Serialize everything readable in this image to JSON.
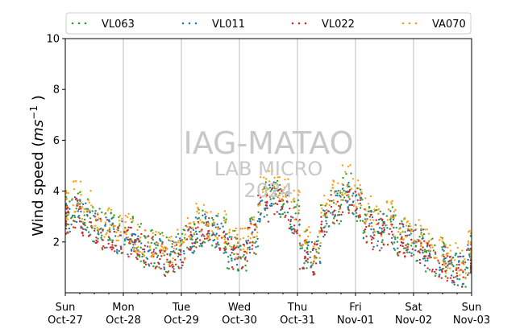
{
  "chart_data": {
    "type": "scatter",
    "ylabel": "Wind speed ($ms^{-1}$)",
    "ylim": [
      0,
      10
    ],
    "yticks": [
      2,
      4,
      6,
      8,
      10
    ],
    "xlim": [
      "2024-10-27",
      "2024-11-03"
    ],
    "grid": "vertical",
    "legend_placement": "top",
    "xtick_labels": [
      {
        "day": "Sun",
        "date": "Oct-27"
      },
      {
        "day": "Mon",
        "date": "Oct-28"
      },
      {
        "day": "Tue",
        "date": "Oct-29"
      },
      {
        "day": "Wed",
        "date": "Oct-30"
      },
      {
        "day": "Thu",
        "date": "Oct-31"
      },
      {
        "day": "Fri",
        "date": "Nov-01"
      },
      {
        "day": "Sat",
        "date": "Nov-02"
      },
      {
        "day": "Sun",
        "date": "Nov-03"
      }
    ],
    "series": [
      {
        "name": "VL063",
        "color": "#2ca02c",
        "values": [
          3.1,
          3.3,
          3.0,
          2.7,
          2.5,
          2.3,
          2.2,
          2.0,
          1.8,
          1.6,
          1.5,
          1.7,
          2.2,
          2.6,
          2.5,
          2.3,
          1.7,
          1.6,
          2.3,
          3.6,
          3.9,
          3.7,
          3.0,
          1.7,
          1.5,
          2.9,
          3.5,
          3.9,
          3.6,
          2.8,
          2.5,
          2.7,
          2.3,
          2.2,
          2.0,
          1.6,
          1.4,
          1.1,
          1.0,
          1.5
        ]
      },
      {
        "name": "VL011",
        "color": "#1f77b4",
        "values": [
          3.0,
          3.2,
          2.9,
          2.6,
          2.4,
          2.2,
          2.1,
          1.9,
          1.7,
          1.5,
          1.4,
          1.6,
          2.1,
          2.5,
          2.4,
          2.2,
          1.6,
          1.5,
          2.2,
          3.4,
          3.8,
          3.6,
          2.9,
          1.6,
          1.4,
          2.8,
          3.4,
          3.8,
          3.5,
          2.7,
          2.4,
          2.6,
          2.2,
          2.1,
          1.9,
          1.5,
          1.3,
          1.0,
          0.9,
          1.4
        ]
      },
      {
        "name": "VL022",
        "color": "#d62728",
        "values": [
          2.9,
          3.1,
          2.8,
          2.5,
          2.3,
          2.1,
          2.0,
          1.8,
          1.6,
          1.4,
          1.3,
          1.5,
          2.0,
          2.4,
          2.3,
          2.1,
          1.5,
          1.4,
          2.1,
          3.3,
          3.7,
          3.5,
          2.8,
          1.5,
          1.3,
          2.7,
          3.3,
          3.7,
          3.4,
          2.6,
          2.3,
          2.5,
          2.1,
          2.0,
          1.8,
          1.4,
          1.2,
          0.9,
          0.8,
          1.3
        ]
      },
      {
        "name": "VA070",
        "color": "#ff9f0f",
        "values": [
          3.5,
          3.8,
          3.4,
          3.0,
          2.8,
          2.6,
          2.5,
          2.2,
          2.0,
          1.8,
          1.7,
          1.9,
          2.5,
          2.9,
          2.8,
          2.6,
          2.0,
          1.9,
          2.6,
          4.0,
          4.3,
          4.1,
          3.4,
          2.0,
          1.8,
          3.2,
          3.9,
          4.4,
          4.0,
          3.2,
          2.8,
          3.0,
          2.7,
          2.5,
          2.3,
          1.9,
          1.7,
          1.4,
          1.2,
          1.8
        ]
      }
    ]
  },
  "legend": {
    "items": [
      {
        "label": "VL063",
        "color": "#2ca02c"
      },
      {
        "label": "VL011",
        "color": "#1f77b4"
      },
      {
        "label": "VL022",
        "color": "#d62728"
      },
      {
        "label": "VA070",
        "color": "#ff9f0f"
      }
    ]
  },
  "watermark": {
    "line1": "IAG-MATAO",
    "line2": "LAB MICRO",
    "line3": "2024"
  }
}
